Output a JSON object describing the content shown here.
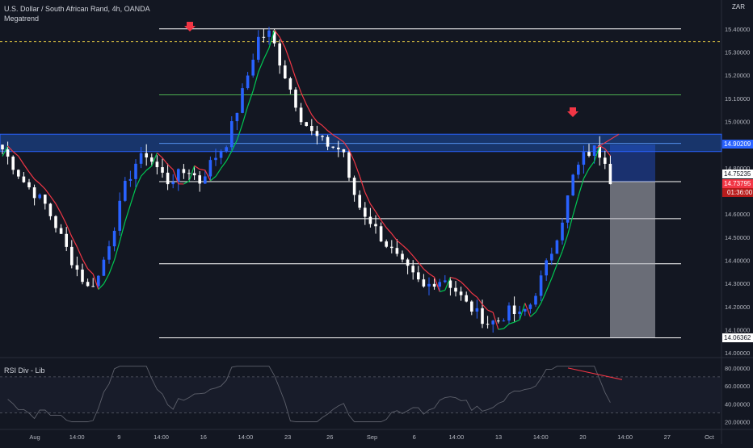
{
  "chart_title": "U.S. Dollar / South African Rand, 4h, OANDA",
  "indicator_main": "Megatrend",
  "indicator_rsi": "RSI Div - Lib",
  "currency": "ZAR",
  "colors": {
    "background": "#131722",
    "candle_up": "#2962ff",
    "candle_down": "#ffffff",
    "trend_up": "#00c853",
    "trend_down": "#f23645",
    "zone": "#1e4fa8",
    "rsi_line": "#5d606b",
    "rsi_div": "#f23645"
  },
  "chart_data": {
    "type": "candlestick",
    "y_axis": {
      "ticks": [
        "15.40000",
        "15.30000",
        "15.20000",
        "15.10000",
        "15.00000",
        "14.90000",
        "14.80000",
        "14.70000",
        "14.60000",
        "14.50000",
        "14.40000",
        "14.30000",
        "14.20000",
        "14.10000",
        "14.00000"
      ],
      "range": [
        13.99,
        15.49
      ]
    },
    "x_axis": {
      "ticks": [
        "Aug",
        "14:00",
        "9",
        "14:00",
        "16",
        "14:00",
        "23",
        "26",
        "Sep",
        "6",
        "14:00",
        "13",
        "14:00",
        "20",
        "14:00",
        "27",
        "Oct"
      ]
    },
    "path_points": [
      [
        0,
        14.88
      ],
      [
        4,
        14.74
      ],
      [
        8,
        14.64
      ],
      [
        10,
        14.55
      ],
      [
        13,
        14.4
      ],
      [
        16,
        14.28
      ],
      [
        18,
        14.33
      ],
      [
        21,
        14.55
      ],
      [
        23,
        14.72
      ],
      [
        25,
        14.82
      ],
      [
        27,
        14.86
      ],
      [
        29,
        14.8
      ],
      [
        31,
        14.74
      ],
      [
        33,
        14.77
      ],
      [
        35,
        14.79
      ],
      [
        37,
        14.74
      ],
      [
        39,
        14.82
      ],
      [
        42,
        14.91
      ],
      [
        44,
        15.05
      ],
      [
        46,
        15.2
      ],
      [
        48,
        15.36
      ],
      [
        50,
        15.38
      ],
      [
        51,
        15.33
      ],
      [
        52,
        15.26
      ],
      [
        54,
        15.14
      ],
      [
        56,
        15.02
      ],
      [
        58,
        14.95
      ],
      [
        60,
        14.91
      ],
      [
        62,
        14.89
      ],
      [
        64,
        14.87
      ],
      [
        65,
        14.74
      ],
      [
        67,
        14.63
      ],
      [
        69,
        14.57
      ],
      [
        71,
        14.5
      ],
      [
        73,
        14.44
      ],
      [
        75,
        14.38
      ],
      [
        77,
        14.33
      ],
      [
        79,
        14.28
      ],
      [
        81,
        14.31
      ],
      [
        83,
        14.32
      ],
      [
        85,
        14.27
      ],
      [
        87,
        14.21
      ],
      [
        89,
        14.17
      ],
      [
        91,
        14.13
      ],
      [
        93,
        14.14
      ],
      [
        95,
        14.18
      ],
      [
        97,
        14.16
      ],
      [
        99,
        14.21
      ],
      [
        101,
        14.32
      ],
      [
        103,
        14.44
      ],
      [
        105,
        14.58
      ],
      [
        107,
        14.76
      ],
      [
        109,
        14.85
      ],
      [
        111,
        14.88
      ],
      [
        113,
        14.84
      ],
      [
        114,
        14.75
      ]
    ],
    "horizontal_levels": [
      15.4,
      15.115,
      14.74,
      14.58,
      14.385,
      14.065
    ],
    "dashed_level": 15.345,
    "resistance_zone": [
      14.87,
      14.945
    ],
    "last_price": "14.75235",
    "current_price": "14.73795",
    "countdown": "01:36:00",
    "zone_price": "14.90209",
    "target_price": "14.06362",
    "rsi": {
      "ticks": [
        "80.00000",
        "60.00000",
        "40.00000",
        "20.00000"
      ],
      "range": [
        15,
        88
      ],
      "overbought": 70,
      "oversold": 30
    }
  }
}
